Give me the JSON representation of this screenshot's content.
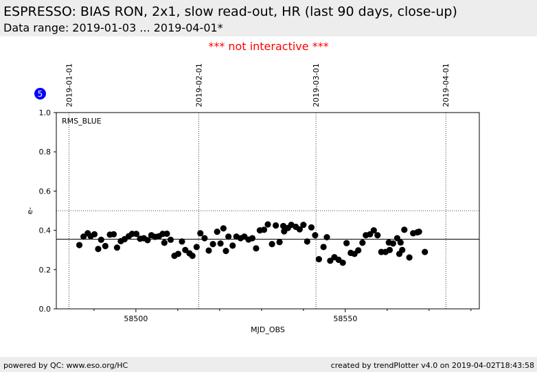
{
  "header": {
    "title": "ESPRESSO: BIAS RON, 2x1, slow read-out, HR (last 90 days, close-up)",
    "subtitle": "Data range: 2019-01-03 ... 2019-04-01*"
  },
  "notice": "*** not interactive ***",
  "badge": "5",
  "footer": {
    "left": "powered by QC: www.eso.org/HC",
    "right": "created by trendPlotter v4.0 on 2019-04-02T18:43:58"
  },
  "colors": {
    "header_bg": "#ededed",
    "notice": "#ff0000",
    "badge": "#0000ff",
    "points": "#000000"
  },
  "chart_data": {
    "type": "scatter",
    "xlabel": "MJD_OBS",
    "ylabel": "e-",
    "xlim": [
      58481,
      58582
    ],
    "ylim": [
      0.0,
      1.0
    ],
    "panel_label": "RMS_BLUE",
    "x_ticks": [
      {
        "value": 58500,
        "label": "58500"
      },
      {
        "value": 58550,
        "label": "58550"
      }
    ],
    "x_minor_ticks": [
      58490,
      58510,
      58520,
      58530,
      58540,
      58560,
      58570,
      58580
    ],
    "y_ticks": [
      {
        "value": 0.0,
        "label": "0.0"
      },
      {
        "value": 0.2,
        "label": "0.2"
      },
      {
        "value": 0.4,
        "label": "0.4"
      },
      {
        "value": 0.6,
        "label": "0.6"
      },
      {
        "value": 0.8,
        "label": "0.8"
      },
      {
        "value": 1.0,
        "label": "1.0"
      }
    ],
    "date_markers": [
      {
        "x": 58484,
        "label": "2019-01-01"
      },
      {
        "x": 58515,
        "label": "2019-02-01"
      },
      {
        "x": 58543,
        "label": "2019-03-01"
      },
      {
        "x": 58574,
        "label": "2019-04-01"
      }
    ],
    "reference_lines": [
      {
        "y": 0.5,
        "style": "dotted"
      },
      {
        "y": 0.355,
        "style": "solid"
      }
    ],
    "points": [
      [
        58486.5,
        0.325
      ],
      [
        58487.5,
        0.368
      ],
      [
        58488.5,
        0.385
      ],
      [
        58489.2,
        0.37
      ],
      [
        58490.1,
        0.38
      ],
      [
        58491.0,
        0.305
      ],
      [
        58491.7,
        0.352
      ],
      [
        58492.7,
        0.32
      ],
      [
        58493.8,
        0.378
      ],
      [
        58494.7,
        0.38
      ],
      [
        58495.5,
        0.312
      ],
      [
        58496.4,
        0.345
      ],
      [
        58497.3,
        0.355
      ],
      [
        58498.3,
        0.37
      ],
      [
        58499.1,
        0.382
      ],
      [
        58500.1,
        0.382
      ],
      [
        58501.0,
        0.357
      ],
      [
        58501.9,
        0.36
      ],
      [
        58502.8,
        0.35
      ],
      [
        58503.7,
        0.375
      ],
      [
        58504.6,
        0.367
      ],
      [
        58505.5,
        0.37
      ],
      [
        58506.4,
        0.382
      ],
      [
        58506.8,
        0.337
      ],
      [
        58507.4,
        0.383
      ],
      [
        58508.3,
        0.352
      ],
      [
        58509.2,
        0.27
      ],
      [
        58510.1,
        0.28
      ],
      [
        58511.0,
        0.343
      ],
      [
        58511.8,
        0.3
      ],
      [
        58512.8,
        0.283
      ],
      [
        58513.5,
        0.27
      ],
      [
        58514.5,
        0.315
      ],
      [
        58515.4,
        0.385
      ],
      [
        58516.4,
        0.36
      ],
      [
        58517.4,
        0.297
      ],
      [
        58518.4,
        0.33
      ],
      [
        58519.4,
        0.393
      ],
      [
        58520.2,
        0.333
      ],
      [
        58520.9,
        0.41
      ],
      [
        58521.5,
        0.295
      ],
      [
        58522.1,
        0.368
      ],
      [
        58523.1,
        0.322
      ],
      [
        58524.0,
        0.368
      ],
      [
        58525.0,
        0.36
      ],
      [
        58525.9,
        0.368
      ],
      [
        58526.9,
        0.353
      ],
      [
        58527.8,
        0.36
      ],
      [
        58528.7,
        0.308
      ],
      [
        58529.6,
        0.4
      ],
      [
        58530.6,
        0.403
      ],
      [
        58531.5,
        0.43
      ],
      [
        58532.5,
        0.33
      ],
      [
        58533.4,
        0.425
      ],
      [
        58534.3,
        0.34
      ],
      [
        58535.2,
        0.422
      ],
      [
        58535.4,
        0.395
      ],
      [
        58536.3,
        0.412
      ],
      [
        58537.1,
        0.428
      ],
      [
        58538.2,
        0.418
      ],
      [
        58539.1,
        0.405
      ],
      [
        58540.0,
        0.428
      ],
      [
        58540.9,
        0.343
      ],
      [
        58541.9,
        0.415
      ],
      [
        58542.8,
        0.375
      ],
      [
        58543.7,
        0.253
      ],
      [
        58544.8,
        0.315
      ],
      [
        58545.6,
        0.365
      ],
      [
        58546.4,
        0.245
      ],
      [
        58547.4,
        0.263
      ],
      [
        58548.4,
        0.25
      ],
      [
        58549.4,
        0.235
      ],
      [
        58550.3,
        0.335
      ],
      [
        58551.3,
        0.285
      ],
      [
        58552.2,
        0.28
      ],
      [
        58553.1,
        0.298
      ],
      [
        58554.1,
        0.337
      ],
      [
        58554.9,
        0.375
      ],
      [
        58555.9,
        0.38
      ],
      [
        58556.8,
        0.4
      ],
      [
        58557.7,
        0.375
      ],
      [
        58558.6,
        0.29
      ],
      [
        58559.6,
        0.29
      ],
      [
        58560.4,
        0.338
      ],
      [
        58560.6,
        0.3
      ],
      [
        58561.4,
        0.333
      ],
      [
        58562.4,
        0.36
      ],
      [
        58562.9,
        0.28
      ],
      [
        58563.2,
        0.338
      ],
      [
        58563.6,
        0.3
      ],
      [
        58564.1,
        0.403
      ],
      [
        58565.3,
        0.262
      ],
      [
        58566.2,
        0.385
      ],
      [
        58567.2,
        0.39
      ],
      [
        58567.6,
        0.393
      ],
      [
        58569.0,
        0.29
      ]
    ]
  }
}
